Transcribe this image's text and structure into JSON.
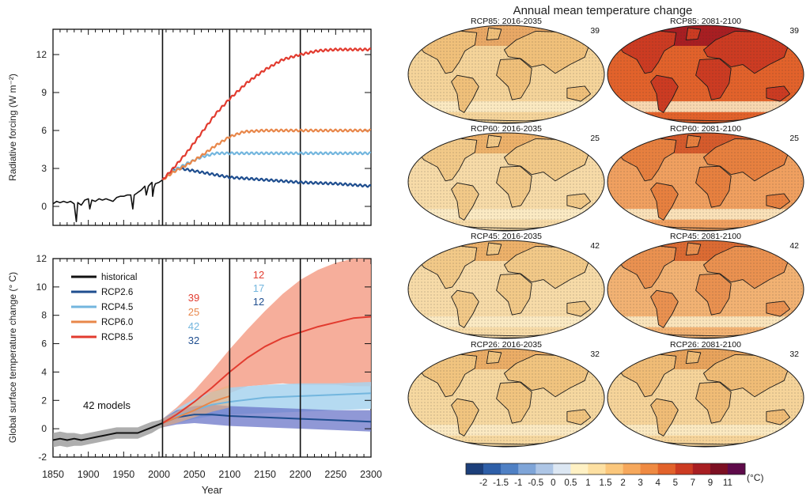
{
  "chart_data": [
    {
      "type": "line",
      "ylabel": "Radiative  forcing (W m⁻²)",
      "ylim": [
        -1.5,
        14
      ],
      "xlim": [
        1850,
        2300
      ],
      "yticks": [
        "0",
        "3",
        "6",
        "9",
        "12"
      ],
      "yticks_values": [
        0,
        3,
        6,
        9,
        12
      ],
      "vlines": [
        2005,
        2100,
        2200
      ],
      "grid": false,
      "series": [
        {
          "name": "historical",
          "color": "#111111",
          "x": [
            1850,
            1855,
            1860,
            1865,
            1870,
            1875,
            1880,
            1883,
            1885,
            1890,
            1895,
            1900,
            1902,
            1905,
            1910,
            1915,
            1920,
            1925,
            1930,
            1935,
            1940,
            1945,
            1950,
            1955,
            1960,
            1963,
            1965,
            1970,
            1975,
            1980,
            1982,
            1985,
            1990,
            1991,
            1993,
            1995,
            2000,
            2005
          ],
          "y": [
            0.2,
            0.4,
            0.3,
            0.4,
            0.3,
            0.4,
            0.2,
            -1.2,
            0.3,
            0.1,
            0.5,
            0.6,
            -0.2,
            0.5,
            0.4,
            0.6,
            0.5,
            0.6,
            0.5,
            0.4,
            0.7,
            0.8,
            0.8,
            0.9,
            0.9,
            -0.2,
            0.9,
            1.1,
            1.3,
            1.6,
            0.9,
            1.6,
            1.9,
            0.8,
            1.5,
            1.8,
            1.9,
            2.1
          ]
        },
        {
          "name": "RCP2.6",
          "color": "#1f4e8f",
          "x": [
            2005,
            2020,
            2030,
            2050,
            2070,
            2100,
            2150,
            2200,
            2250,
            2300
          ],
          "y": [
            2.1,
            2.9,
            3.0,
            2.8,
            2.6,
            2.3,
            2.1,
            1.9,
            1.8,
            1.6
          ]
        },
        {
          "name": "RCP4.5",
          "color": "#73b6de",
          "x": [
            2005,
            2020,
            2040,
            2060,
            2080,
            2100,
            2150,
            2200,
            2250,
            2300
          ],
          "y": [
            2.1,
            2.8,
            3.4,
            3.9,
            4.2,
            4.2,
            4.2,
            4.2,
            4.2,
            4.2
          ]
        },
        {
          "name": "RCP6.0",
          "color": "#e8874a",
          "x": [
            2005,
            2020,
            2040,
            2060,
            2080,
            2100,
            2120,
            2150,
            2200,
            2250,
            2300
          ],
          "y": [
            2.1,
            2.7,
            3.3,
            4.0,
            4.8,
            5.5,
            5.9,
            6.0,
            6.0,
            6.0,
            6.0
          ]
        },
        {
          "name": "RCP8.5",
          "color": "#e23b2f",
          "x": [
            2005,
            2020,
            2040,
            2060,
            2080,
            2100,
            2125,
            2150,
            2175,
            2200,
            2225,
            2250,
            2300
          ],
          "y": [
            2.1,
            3.0,
            4.3,
            5.8,
            7.3,
            8.5,
            9.8,
            10.8,
            11.6,
            12.0,
            12.3,
            12.4,
            12.4
          ]
        }
      ]
    },
    {
      "type": "line",
      "xlabel": "Year",
      "ylabel": "Global surface temperature change (° C)",
      "ylim": [
        -2,
        12
      ],
      "xlim": [
        1850,
        2300
      ],
      "xticks": [
        "1850",
        "1900",
        "1950",
        "2000",
        "2050",
        "2100",
        "2150",
        "2200",
        "2250",
        "2300"
      ],
      "xticks_values": [
        1850,
        1900,
        1950,
        2000,
        2050,
        2100,
        2150,
        2200,
        2250,
        2300
      ],
      "yticks": [
        "-2",
        "0",
        "2",
        "4",
        "6",
        "8",
        "10",
        "12"
      ],
      "yticks_values": [
        -2,
        0,
        2,
        4,
        6,
        8,
        10,
        12
      ],
      "vlines": [
        2005,
        2100,
        2200
      ],
      "grid": false,
      "legend_position": "top-left",
      "annotation": "42 models",
      "counts_2081_2100": {
        "RCP8.5": "39",
        "RCP6.0": "25",
        "RCP4.5": "42",
        "RCP2.6": "32"
      },
      "counts_2181_2200": {
        "RCP8.5": "12",
        "RCP4.5": "17",
        "RCP2.6": "12"
      },
      "series": [
        {
          "name": "historical",
          "color": "#111111",
          "x": [
            1850,
            1860,
            1870,
            1880,
            1890,
            1900,
            1910,
            1920,
            1930,
            1940,
            1950,
            1960,
            1970,
            1980,
            1990,
            2000,
            2005
          ],
          "y": [
            -0.8,
            -0.7,
            -0.8,
            -0.7,
            -0.8,
            -0.7,
            -0.6,
            -0.5,
            -0.4,
            -0.3,
            -0.3,
            -0.3,
            -0.3,
            -0.1,
            0.1,
            0.3,
            0.4
          ],
          "upper": [
            -0.3,
            -0.2,
            -0.3,
            -0.3,
            -0.4,
            -0.3,
            -0.2,
            -0.1,
            0.0,
            0.1,
            0.1,
            0.1,
            0.1,
            0.3,
            0.5,
            0.6,
            0.7
          ],
          "lower": [
            -1.3,
            -1.2,
            -1.3,
            -1.2,
            -1.2,
            -1.1,
            -1.0,
            -0.9,
            -0.8,
            -0.7,
            -0.7,
            -0.7,
            -0.7,
            -0.5,
            -0.3,
            0.0,
            0.1
          ]
        },
        {
          "name": "RCP2.6",
          "color": "#1f4e8f",
          "x": [
            2005,
            2025,
            2050,
            2075,
            2100,
            2150,
            2200,
            2250,
            2300
          ],
          "y": [
            0.4,
            0.8,
            1.0,
            1.0,
            0.9,
            0.8,
            0.7,
            0.6,
            0.5
          ],
          "upper": [
            0.7,
            1.3,
            1.6,
            1.7,
            1.6,
            1.5,
            1.4,
            1.3,
            1.3
          ],
          "lower": [
            0.1,
            0.3,
            0.4,
            0.3,
            0.2,
            0.1,
            0.0,
            -0.1,
            -0.2
          ]
        },
        {
          "name": "RCP4.5",
          "color": "#73b6de",
          "x": [
            2005,
            2025,
            2050,
            2075,
            2100,
            2150,
            2200,
            2250,
            2300
          ],
          "y": [
            0.4,
            0.9,
            1.3,
            1.7,
            1.9,
            2.2,
            2.3,
            2.4,
            2.5
          ],
          "upper": [
            0.7,
            1.4,
            2.1,
            2.6,
            2.9,
            3.1,
            3.2,
            3.2,
            3.3
          ],
          "lower": [
            0.1,
            0.4,
            0.7,
            0.9,
            1.0,
            1.1,
            1.2,
            1.3,
            1.4
          ]
        },
        {
          "name": "RCP6.0",
          "color": "#e8874a",
          "x": [
            2005,
            2025,
            2050,
            2075,
            2100
          ],
          "y": [
            0.4,
            0.8,
            1.3,
            1.9,
            2.3
          ],
          "upper": [
            0.7,
            1.2,
            1.9,
            2.6,
            3.1
          ],
          "lower": [
            0.1,
            0.4,
            0.8,
            1.2,
            1.5
          ]
        },
        {
          "name": "RCP8.5",
          "color": "#e23b2f",
          "x": [
            2005,
            2025,
            2050,
            2075,
            2100,
            2125,
            2150,
            2175,
            2200,
            2225,
            2250,
            2275,
            2300
          ],
          "y": [
            0.4,
            1.0,
            1.9,
            2.9,
            4.0,
            5.0,
            5.8,
            6.4,
            6.8,
            7.2,
            7.5,
            7.8,
            7.9
          ],
          "upper": [
            0.7,
            1.5,
            2.7,
            4.1,
            5.6,
            7.0,
            8.3,
            9.5,
            10.5,
            11.2,
            11.7,
            12.0,
            12.0
          ],
          "lower": [
            0.1,
            0.5,
            1.1,
            1.7,
            2.5,
            3.0,
            3.1,
            3.2,
            3.1,
            3.1,
            3.1,
            3.0,
            3.0
          ]
        }
      ]
    },
    {
      "type": "heatmap",
      "title": "Annual mean temperature change",
      "colorbar_ticks": [
        "-2",
        "-1.5",
        "-1",
        "-0.5",
        "0",
        "0.5",
        "1",
        "1.5",
        "2",
        "3",
        "4",
        "5",
        "7",
        "9",
        "11"
      ],
      "colorbar_unit": "(°C)",
      "colorbar_colors": [
        "#1c3f7a",
        "#2e5fa8",
        "#4f80c4",
        "#7fa5d8",
        "#aec6e6",
        "#dce7f3",
        "#fff1c4",
        "#fde0a2",
        "#fbc77c",
        "#f6a85c",
        "#ef8a42",
        "#e2622b",
        "#cc3b22",
        "#a81e22",
        "#7c0f22",
        "#5e0a4a"
      ],
      "panels": [
        {
          "label": "RCP85: 2016-2035",
          "count": "39",
          "palette": {
            "base": "#f5d49a",
            "mid": "#f0c07a",
            "hot": "#e9a865"
          }
        },
        {
          "label": "RCP85: 2081-2100",
          "count": "39",
          "palette": {
            "base": "#e2622b",
            "mid": "#cc3b22",
            "hot": "#a81e22"
          }
        },
        {
          "label": "RCP60: 2016-2035",
          "count": "25",
          "palette": {
            "base": "#f7dba8",
            "mid": "#f2c988",
            "hot": "#edb16a"
          }
        },
        {
          "label": "RCP60: 2081-2100",
          "count": "25",
          "palette": {
            "base": "#f0a060",
            "mid": "#e7803f",
            "hot": "#d65b2c"
          }
        },
        {
          "label": "RCP45: 2016-2035",
          "count": "42",
          "palette": {
            "base": "#f7dba8",
            "mid": "#f2c988",
            "hot": "#edb16a"
          }
        },
        {
          "label": "RCP45: 2081-2100",
          "count": "42",
          "palette": {
            "base": "#f2b273",
            "mid": "#ea9150",
            "hot": "#dc6b33"
          }
        },
        {
          "label": "RCP26: 2016-2035",
          "count": "32",
          "palette": {
            "base": "#f6d8a0",
            "mid": "#f1c47f",
            "hot": "#ebad66"
          }
        },
        {
          "label": "RCP26: 2081-2100",
          "count": "32",
          "palette": {
            "base": "#f6d49a",
            "mid": "#f0bc76",
            "hot": "#e8a35c"
          }
        }
      ]
    }
  ]
}
